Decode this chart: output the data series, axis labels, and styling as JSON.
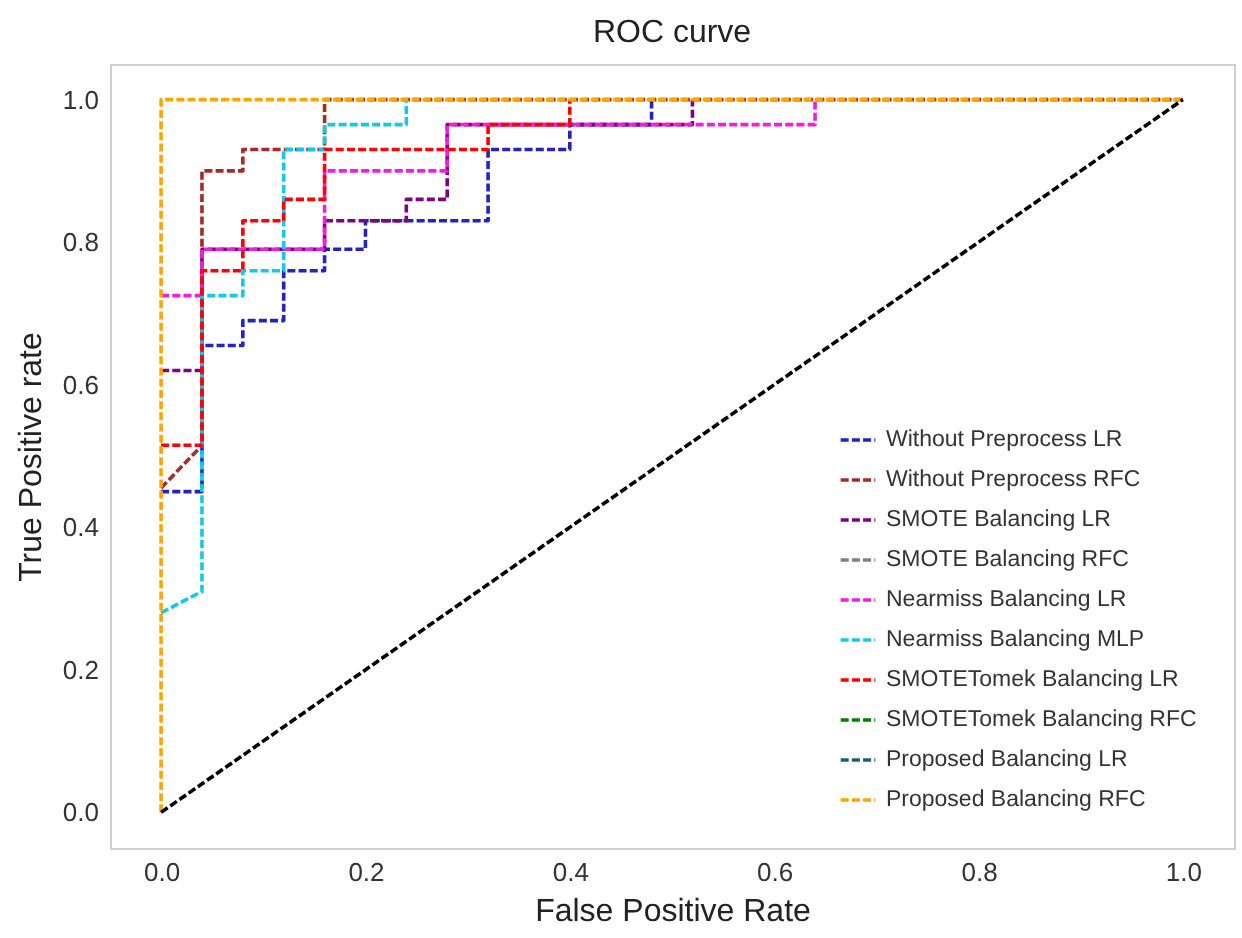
{
  "chart_data": {
    "type": "line",
    "title": "ROC curve",
    "xlabel": "False Positive Rate",
    "ylabel": "True Positive rate",
    "xlim": [
      -0.05,
      1.05
    ],
    "ylim": [
      -0.05,
      1.05
    ],
    "xticks": [
      {
        "value": 0,
        "label": "0.0"
      },
      {
        "value": 0.2,
        "label": "0.2"
      },
      {
        "value": 0.4,
        "label": "0.4"
      },
      {
        "value": 0.6,
        "label": "0.6"
      },
      {
        "value": 0.8,
        "label": "0.8"
      },
      {
        "value": 1,
        "label": "1.0"
      }
    ],
    "yticks": [
      {
        "value": 0,
        "label": "0.0"
      },
      {
        "value": 0.2,
        "label": "0.2"
      },
      {
        "value": 0.4,
        "label": "0.4"
      },
      {
        "value": 0.6,
        "label": "0.6"
      },
      {
        "value": 0.8,
        "label": "0.8"
      },
      {
        "value": 1,
        "label": "1.0"
      }
    ],
    "grid": false,
    "legend": "bottom right",
    "line_style": "dashed",
    "marker": "none",
    "series": [
      {
        "name": "Without Preprocess LR",
        "color": "#2323c0",
        "x": [
          0,
          0.04,
          0.04,
          0.08,
          0.08,
          0.12,
          0.12,
          0.16,
          0.16,
          0.2,
          0.2,
          0.32,
          0.32,
          0.4,
          0.4,
          0.48,
          0.48
        ],
        "values": [
          0.45,
          0.45,
          0.655,
          0.655,
          0.69,
          0.69,
          0.76,
          0.76,
          0.79,
          0.79,
          0.83,
          0.83,
          0.93,
          0.93,
          0.965,
          0.965,
          1
        ]
      },
      {
        "name": "Without Preprocess RFC",
        "color": "#a52a2a",
        "x": [
          0,
          0.04,
          0.04,
          0.08,
          0.08,
          0.16,
          0.16,
          1
        ],
        "values": [
          0.455,
          0.515,
          0.9,
          0.9,
          0.93,
          0.93,
          1,
          1
        ]
      },
      {
        "name": "SMOTE Balancing LR",
        "color": "#800080",
        "x": [
          0,
          0.04,
          0.04,
          0.08,
          0.08,
          0.16,
          0.16,
          0.24,
          0.24,
          0.28,
          0.28,
          0.52,
          0.52
        ],
        "values": [
          0.62,
          0.62,
          0.79,
          0.79,
          0.79,
          0.79,
          0.83,
          0.83,
          0.86,
          0.86,
          0.965,
          0.965,
          1
        ]
      },
      {
        "name": "SMOTE Balancing RFC",
        "color": "#808080",
        "x": [
          null
        ],
        "values": [
          null
        ]
      },
      {
        "name": "Nearmiss Balancing LR",
        "color": "#f01ee0",
        "x": [
          0,
          0.04,
          0.04,
          0.16,
          0.16,
          0.28,
          0.28,
          0.64,
          0.64
        ],
        "values": [
          0.725,
          0.725,
          0.79,
          0.79,
          0.9,
          0.9,
          0.965,
          0.965,
          1
        ]
      },
      {
        "name": "Nearmiss Balancing MLP",
        "color": "#14c8e8",
        "x": [
          0,
          0.04,
          0.04,
          0.08,
          0.08,
          0.12,
          0.12,
          0.16,
          0.16,
          0.24,
          0.24
        ],
        "values": [
          0.28,
          0.31,
          0.725,
          0.725,
          0.76,
          0.76,
          0.93,
          0.93,
          0.965,
          0.965,
          1
        ]
      },
      {
        "name": "SMOTETomek Balancing LR",
        "color": "#ff0000",
        "x": [
          0,
          0.04,
          0.04,
          0.08,
          0.08,
          0.12,
          0.12,
          0.16,
          0.16,
          0.32,
          0.32,
          0.4,
          0.4
        ],
        "values": [
          0.515,
          0.515,
          0.76,
          0.76,
          0.83,
          0.83,
          0.86,
          0.86,
          0.93,
          0.93,
          0.965,
          0.965,
          1
        ]
      },
      {
        "name": "SMOTETomek Balancing RFC",
        "color": "#008000",
        "x": [
          null
        ],
        "values": [
          null
        ]
      },
      {
        "name": "Proposed Balancing LR",
        "color": "#1f6070",
        "x": [
          null
        ],
        "values": [
          null
        ]
      },
      {
        "name": "Proposed Balancing RFC",
        "color": "#ffa500",
        "x": [
          0,
          0,
          1
        ],
        "values": [
          0,
          1,
          1
        ]
      },
      {
        "color": "#000000",
        "x": [
          0,
          1
        ],
        "values": [
          0,
          1
        ]
      }
    ]
  }
}
